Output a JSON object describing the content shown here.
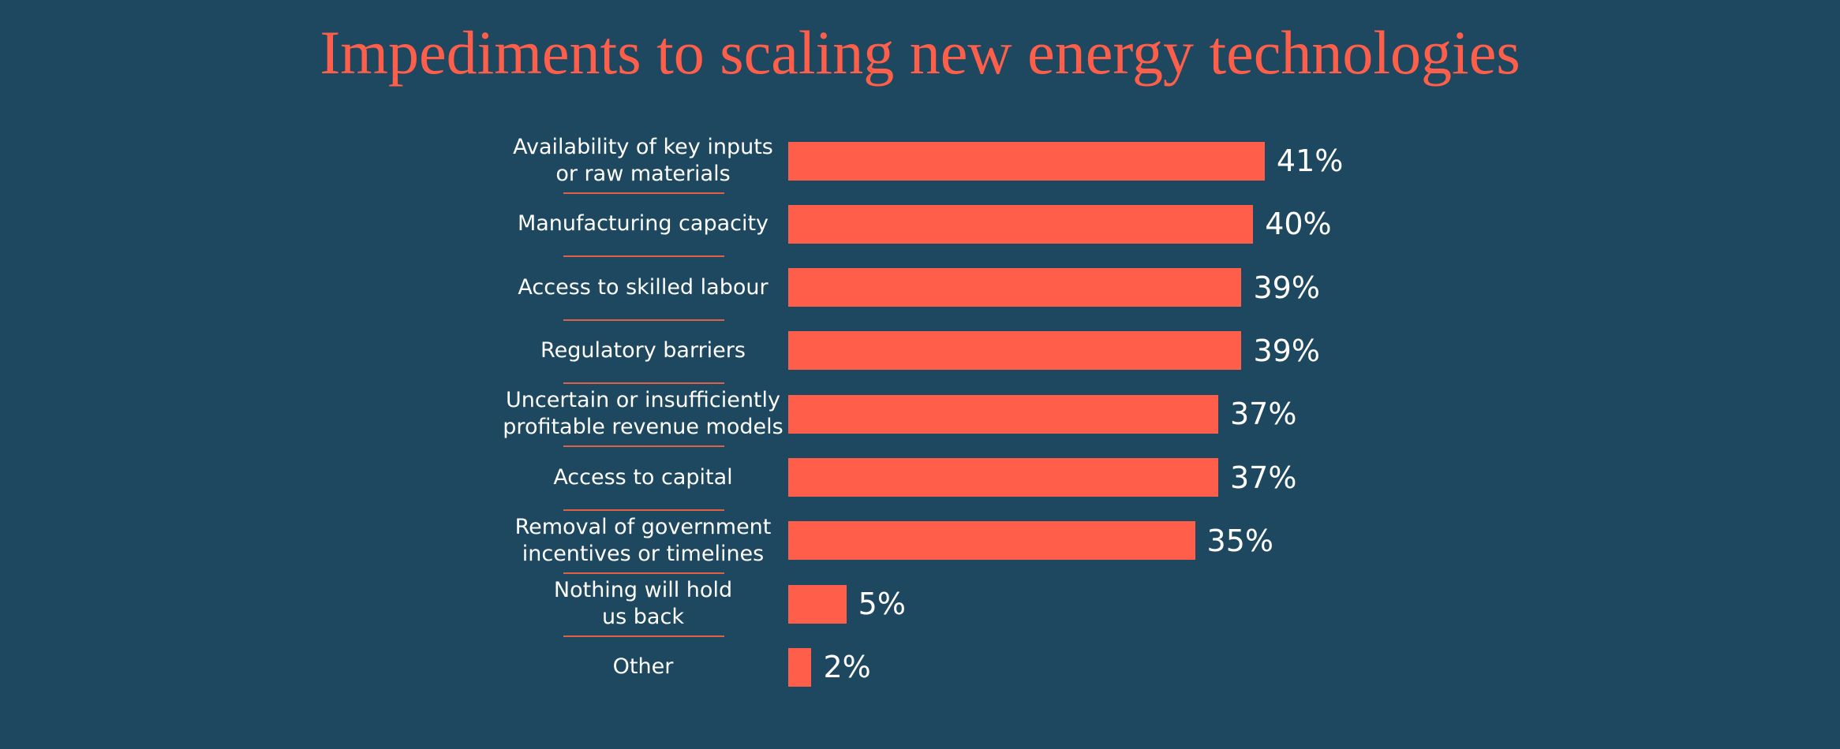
{
  "chart_data": {
    "type": "bar",
    "orientation": "horizontal",
    "title": "Impediments to scaling new energy technologies",
    "categories": [
      "Availability of key inputs\nor raw materials",
      "Manufacturing capacity",
      "Access to skilled labour",
      "Regulatory barriers",
      "Uncertain or insufficiently\nprofitable revenue models",
      "Access to capital",
      "Removal of government\nincentives or timelines",
      "Nothing will hold\nus back",
      "Other"
    ],
    "values": [
      41,
      40,
      39,
      39,
      37,
      37,
      35,
      5,
      2
    ],
    "value_labels": [
      "41%",
      "40%",
      "39%",
      "39%",
      "37%",
      "37%",
      "35%",
      "5%",
      "2%"
    ],
    "color": "#ff5f4a"
  }
}
